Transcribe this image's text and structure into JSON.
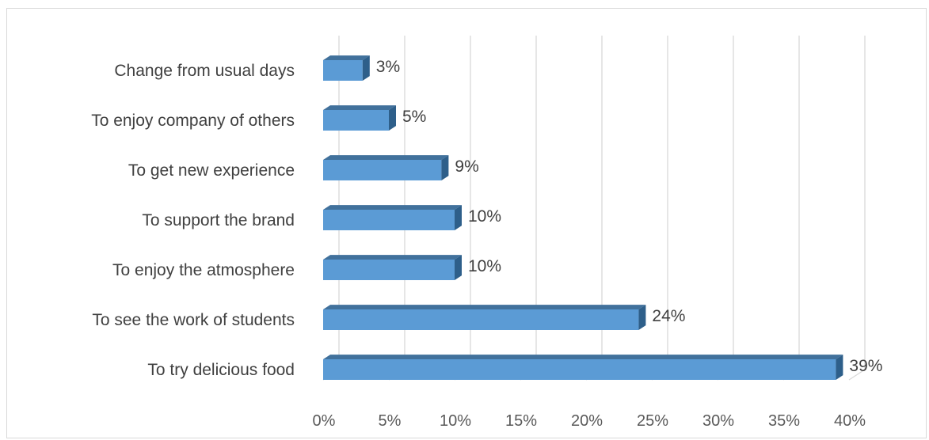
{
  "chart_data": {
    "type": "bar",
    "orientation": "horizontal",
    "categories": [
      "Change from usual days",
      "To enjoy company of others",
      "To get new experience",
      "To support the brand",
      "To enjoy the atmosphere",
      "To see the work of students",
      "To try delicious food"
    ],
    "values": [
      3,
      5,
      9,
      10,
      10,
      24,
      39
    ],
    "value_labels": [
      "3%",
      "5%",
      "9%",
      "10%",
      "10%",
      "24%",
      "39%"
    ],
    "x_ticks": [
      "0%",
      "5%",
      "10%",
      "15%",
      "20%",
      "25%",
      "30%",
      "35%",
      "40%"
    ],
    "xlim": [
      0,
      40
    ],
    "grid": true,
    "colors": {
      "bar_front": "#5b9bd5",
      "bar_top": "#41719c",
      "bar_side": "#2e5f8a",
      "grid": "#d9d9d9"
    }
  }
}
